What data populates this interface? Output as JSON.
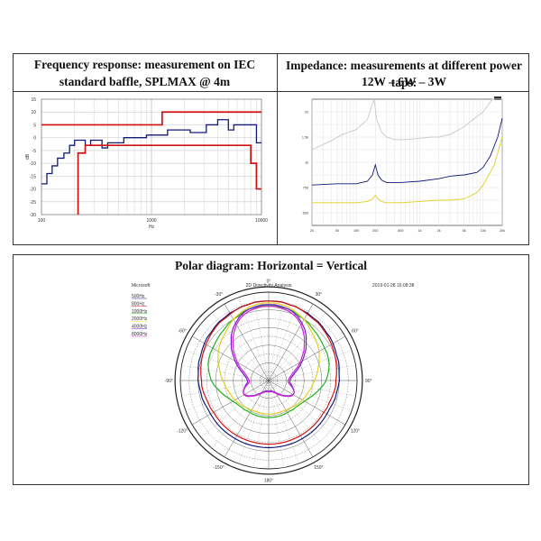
{
  "freq_panel": {
    "title": "Frequency response: measurement on IEC standard baffle, SPLMAX @ 4m"
  },
  "imp_panel": {
    "title_line1": "Impedance: measurements at different power taps:",
    "title_line2": "12W – 6W – 3W"
  },
  "polar_panel": {
    "title": "Polar diagram: Horizontal = Vertical"
  },
  "colors": {
    "red": "#d01010",
    "blue": "#101a78",
    "green": "#22b020",
    "yellow": "#e0d020",
    "purple": "#7a1ad0",
    "magenta": "#d020d0",
    "gray": "#c8c8c8",
    "darkred": "#8a0000"
  },
  "chart_data": [
    {
      "type": "line",
      "xscale": "log",
      "xlim": [
        100,
        10000
      ],
      "ylim": [
        -30,
        15
      ],
      "xlabel": "Hz",
      "ylabel": "dB",
      "x_ticks": [
        "100",
        "1000",
        "10000"
      ],
      "y_ticks": [
        "15",
        "10",
        "5",
        "0",
        "-5",
        "-10",
        "-15",
        "-20",
        "-25",
        "-30"
      ],
      "series": [
        {
          "color": "blue",
          "x": [
            100,
            112,
            125,
            140,
            160,
            180,
            200,
            225,
            250,
            280,
            315,
            355,
            400,
            450,
            500,
            560,
            630,
            710,
            800,
            900,
            1000,
            1120,
            1250,
            1400,
            1600,
            1800,
            2000,
            2250,
            2500,
            2800,
            3150,
            3550,
            4000,
            4500,
            5000,
            5600,
            6300,
            7100,
            8000,
            9000,
            10000
          ],
          "y": [
            -18,
            -14,
            -11,
            -8,
            -6,
            -3,
            -1,
            -1,
            -3,
            -1,
            -1,
            -4,
            -2,
            -2,
            -2,
            0,
            0,
            0,
            0,
            1,
            1,
            1,
            1,
            3,
            3,
            3,
            3,
            2,
            2,
            2,
            5,
            5,
            7,
            7,
            3,
            5,
            5,
            5,
            5,
            -2,
            -2
          ]
        },
        {
          "color": "red",
          "x": [
            100,
            1250,
            1250,
            2000,
            2000,
            10000
          ],
          "y": [
            5,
            5,
            10,
            10,
            10,
            10
          ]
        },
        {
          "color": "red",
          "x": [
            215,
            215,
            250,
            250,
            2800,
            2800,
            8000,
            8000,
            9000,
            9000,
            10000
          ],
          "y": [
            -30,
            -6,
            -6,
            -3,
            -3,
            -3,
            -3,
            -10,
            -10,
            -20,
            -20
          ]
        }
      ]
    },
    {
      "type": "line",
      "xscale": "log",
      "xlim": [
        20,
        20000
      ],
      "x_ticks": [
        "20",
        "50",
        "100",
        "200",
        "500",
        "1k",
        "2k",
        "5k",
        "10k",
        "20k"
      ],
      "y_ticks": [
        "2k",
        "1.5k",
        "1k",
        "750",
        "500"
      ],
      "series": [
        {
          "name": "12W",
          "color": "yellow",
          "x": [
            20,
            50,
            100,
            150,
            180,
            200,
            220,
            250,
            300,
            500,
            1000,
            2000,
            3000,
            5000,
            8000,
            10000,
            15000,
            20000
          ],
          "y": [
            18,
            18,
            18,
            19,
            21,
            24,
            21,
            19,
            18,
            18,
            19,
            20,
            20,
            21,
            26,
            32,
            48,
            70
          ]
        },
        {
          "name": "6W",
          "color": "blue",
          "x": [
            20,
            50,
            100,
            150,
            180,
            200,
            220,
            250,
            300,
            500,
            1000,
            2000,
            3000,
            5000,
            8000,
            10000,
            13000,
            17000,
            20000
          ],
          "y": [
            32,
            33,
            33,
            35,
            40,
            48,
            40,
            36,
            34,
            34,
            35,
            37,
            39,
            40,
            42,
            46,
            55,
            70,
            85
          ]
        },
        {
          "name": "3W",
          "color": "gray",
          "x": [
            20,
            40,
            60,
            100,
            150,
            190,
            210,
            250,
            300,
            400,
            600,
            1000,
            1500,
            2000,
            3000,
            5000,
            7000,
            10000,
            14000,
            20000
          ],
          "y": [
            60,
            67,
            72,
            76,
            84,
            100,
            84,
            74,
            70,
            68,
            68,
            69,
            70,
            70,
            72,
            78,
            84,
            90,
            100,
            100
          ]
        }
      ]
    },
    {
      "type": "polar",
      "title": "2D Directivity Analysis",
      "timestamp": "2019-01-28 16:08:38",
      "legend_header": "Microsoft",
      "angle_labels": [
        "0°",
        "30°",
        "60°",
        "90°",
        "120°",
        "150°",
        "180°",
        "-150°",
        "-120°",
        "-90°",
        "-60°",
        "-30°"
      ],
      "series": [
        {
          "name": "500Hz",
          "color": "blue",
          "radii": [
            0.9,
            0.9,
            0.9,
            0.89,
            0.89,
            0.88,
            0.88,
            0.87,
            0.87,
            0.86,
            0.85,
            0.85,
            0.84,
            0.83,
            0.82,
            0.82,
            0.81,
            0.8,
            0.8,
            0.79,
            0.78,
            0.78,
            0.77,
            0.76,
            0.76,
            0.76,
            0.76,
            0.76,
            0.76,
            0.76,
            0.76,
            0.76,
            0.76,
            0.76,
            0.76,
            0.76,
            0.76
          ]
        },
        {
          "name": "800Hz",
          "color": "red",
          "radii": [
            0.9,
            0.9,
            0.9,
            0.89,
            0.89,
            0.88,
            0.87,
            0.86,
            0.86,
            0.85,
            0.84,
            0.83,
            0.82,
            0.81,
            0.8,
            0.79,
            0.78,
            0.77,
            0.76,
            0.76,
            0.75,
            0.74,
            0.73,
            0.73,
            0.72,
            0.72,
            0.72,
            0.72,
            0.72,
            0.72,
            0.72,
            0.72,
            0.72,
            0.72,
            0.72,
            0.72,
            0.72
          ]
        },
        {
          "name": "1000Hz",
          "color": "green",
          "radii": [
            0.85,
            0.85,
            0.84,
            0.84,
            0.83,
            0.81,
            0.8,
            0.79,
            0.77,
            0.76,
            0.75,
            0.74,
            0.73,
            0.73,
            0.72,
            0.71,
            0.69,
            0.67,
            0.65,
            0.62,
            0.58,
            0.55,
            0.52,
            0.49,
            0.47,
            0.45,
            0.44,
            0.43,
            0.43,
            0.42,
            0.42,
            0.42,
            0.42,
            0.42,
            0.42,
            0.42,
            0.42
          ]
        },
        {
          "name": "2000Hz",
          "color": "yellow",
          "radii": [
            0.88,
            0.88,
            0.87,
            0.86,
            0.84,
            0.82,
            0.8,
            0.77,
            0.74,
            0.72,
            0.7,
            0.68,
            0.66,
            0.63,
            0.61,
            0.58,
            0.56,
            0.54,
            0.52,
            0.5,
            0.49,
            0.47,
            0.46,
            0.45,
            0.44,
            0.43,
            0.42,
            0.41,
            0.4,
            0.39,
            0.39,
            0.38,
            0.38,
            0.38,
            0.38,
            0.38,
            0.38
          ]
        },
        {
          "name": "4000Hz",
          "color": "purple",
          "radii": [
            0.86,
            0.86,
            0.85,
            0.84,
            0.82,
            0.79,
            0.75,
            0.71,
            0.66,
            0.6,
            0.55,
            0.49,
            0.44,
            0.39,
            0.34,
            0.3,
            0.27,
            0.25,
            0.24,
            0.24,
            0.26,
            0.28,
            0.3,
            0.32,
            0.32,
            0.3,
            0.27,
            0.24,
            0.21,
            0.18,
            0.16,
            0.14,
            0.13,
            0.12,
            0.12,
            0.12,
            0.12
          ]
        },
        {
          "name": "8000Hz",
          "color": "magenta",
          "radii": [
            0.84,
            0.84,
            0.83,
            0.82,
            0.8,
            0.77,
            0.73,
            0.68,
            0.63,
            0.57,
            0.52,
            0.46,
            0.41,
            0.36,
            0.31,
            0.27,
            0.25,
            0.23,
            0.22,
            0.22,
            0.24,
            0.27,
            0.3,
            0.32,
            0.32,
            0.31,
            0.28,
            0.25,
            0.22,
            0.19,
            0.17,
            0.15,
            0.14,
            0.13,
            0.13,
            0.13,
            0.13
          ]
        }
      ]
    }
  ]
}
